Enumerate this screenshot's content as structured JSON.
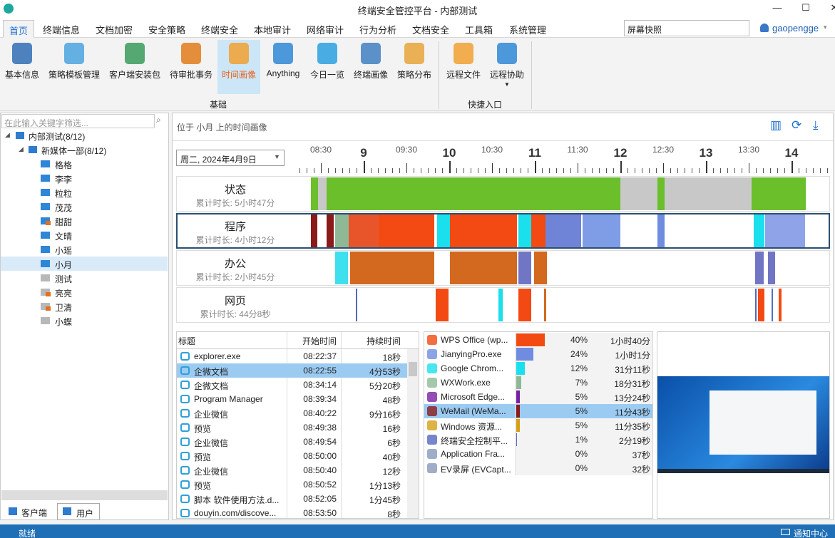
{
  "window": {
    "title": "终端安全管控平台 - 内部测试"
  },
  "menu": {
    "tabs": [
      "首页",
      "终端信息",
      "文档加密",
      "安全策略",
      "终端安全",
      "本地审计",
      "网络审计",
      "行为分析",
      "文档安全",
      "工具箱",
      "系统管理"
    ],
    "active": 0,
    "search": "屏幕快照",
    "user": "gaopengge"
  },
  "toolbar": {
    "groups": [
      {
        "label": "基础",
        "items": [
          {
            "label": "基本信息",
            "color": "#2f6db5"
          },
          {
            "label": "策略模板管理",
            "color": "#4aa3df"
          },
          {
            "label": "客户端安装包",
            "color": "#3a9a5b"
          },
          {
            "label": "待审批事务",
            "color": "#e07b1a"
          },
          {
            "label": "时间画像",
            "color": "#f0a030"
          },
          {
            "label": "Anything",
            "color": "#2f86d6"
          },
          {
            "label": "今日一览",
            "color": "#2aa0e0"
          },
          {
            "label": "终端画像",
            "color": "#3f7fc0"
          },
          {
            "label": "策略分布",
            "color": "#e8a33a"
          }
        ]
      },
      {
        "label": "快捷入口",
        "items": [
          {
            "label": "远程文件",
            "color": "#f0a030"
          },
          {
            "label": "远程协助",
            "color": "#2f86d6"
          }
        ]
      }
    ],
    "active": 4
  },
  "sidebar": {
    "filter_placeholder": "在此输入关键字筛选...",
    "root": "内部测试(8/12)",
    "dept": "新媒体一部(8/12)",
    "users": [
      {
        "name": "格格",
        "online": true
      },
      {
        "name": "李李",
        "online": true
      },
      {
        "name": "粒粒",
        "online": true
      },
      {
        "name": "茂茂",
        "online": true
      },
      {
        "name": "甜甜",
        "online": true,
        "locked": true
      },
      {
        "name": "文晴",
        "online": true
      },
      {
        "name": "小瑶",
        "online": true
      },
      {
        "name": "小月",
        "online": true
      },
      {
        "name": "测试",
        "online": false
      },
      {
        "name": "亮亮",
        "online": false,
        "locked": true
      },
      {
        "name": "卫清",
        "online": false,
        "locked": true
      },
      {
        "name": "小蝶",
        "online": false
      }
    ],
    "selected": 7,
    "tabs": [
      "客户端",
      "用户"
    ],
    "active_tab": 1
  },
  "panel": {
    "header": "位于 小月 上的时间画像",
    "date": "周二, 2024年4月9日"
  },
  "chart_data": {
    "type": "timeline",
    "xlim": [
      8.25,
      14.45
    ],
    "xticks": [
      {
        "value": 8.5,
        "label": "08:30"
      },
      9,
      {
        "value": 9.5,
        "label": "09:30"
      },
      10,
      {
        "value": 10.5,
        "label": "10:30"
      },
      11,
      {
        "value": 11.5,
        "label": "11:30"
      },
      12,
      {
        "value": 12.5,
        "label": "12:30"
      },
      13,
      {
        "value": 13.5,
        "label": "13:30"
      },
      14
    ],
    "rows": [
      {
        "name": "状态",
        "total": "累计时长: 5小时47分",
        "segments": [
          {
            "start": 8.383,
            "end": 8.467,
            "color": "#6abf2a"
          },
          {
            "start": 8.467,
            "end": 8.567,
            "color": "#c8c8c8"
          },
          {
            "start": 8.567,
            "end": 12.0,
            "color": "#6abf2a"
          },
          {
            "start": 12.0,
            "end": 12.433,
            "color": "#c8c8c8"
          },
          {
            "start": 12.433,
            "end": 12.517,
            "color": "#6abf2a"
          },
          {
            "start": 12.517,
            "end": 13.533,
            "color": "#c8c8c8"
          },
          {
            "start": 13.533,
            "end": 14.167,
            "color": "#6abf2a"
          }
        ]
      },
      {
        "name": "程序",
        "total": "累计时长: 4小时12分",
        "segments": [
          {
            "start": 8.383,
            "end": 8.458,
            "color": "#8b1a1a"
          },
          {
            "start": 8.567,
            "end": 8.65,
            "color": "#8b1a1a"
          },
          {
            "start": 8.667,
            "end": 8.825,
            "color": "#8fb996"
          },
          {
            "start": 8.825,
            "end": 9.175,
            "color": "#e8552a"
          },
          {
            "start": 9.175,
            "end": 9.825,
            "color": "#f24a12"
          },
          {
            "start": 9.858,
            "end": 10.008,
            "color": "#19e0ec"
          },
          {
            "start": 10.008,
            "end": 10.792,
            "color": "#f24a12"
          },
          {
            "start": 10.808,
            "end": 10.958,
            "color": "#19e0ec"
          },
          {
            "start": 10.958,
            "end": 11.125,
            "color": "#f24a12"
          },
          {
            "start": 11.125,
            "end": 11.542,
            "color": "#6f84d6"
          },
          {
            "start": 11.558,
            "end": 12.0,
            "color": "#7f9ce6"
          },
          {
            "start": 12.433,
            "end": 12.517,
            "color": "#6f8ce0"
          },
          {
            "start": 13.558,
            "end": 13.683,
            "color": "#19e0ec"
          },
          {
            "start": 13.692,
            "end": 14.158,
            "color": "#8fa3e8"
          }
        ]
      },
      {
        "name": "办公",
        "total": "累计时长: 2小时45分",
        "segments": [
          {
            "start": 8.667,
            "end": 8.817,
            "color": "#3de0ec"
          },
          {
            "start": 8.842,
            "end": 9.825,
            "color": "#d2691e"
          },
          {
            "start": 10.008,
            "end": 10.792,
            "color": "#d2691e"
          },
          {
            "start": 10.808,
            "end": 10.958,
            "color": "#7076c4"
          },
          {
            "start": 10.992,
            "end": 11.142,
            "color": "#d2691e"
          },
          {
            "start": 13.575,
            "end": 13.675,
            "color": "#7076c4"
          },
          {
            "start": 13.725,
            "end": 13.808,
            "color": "#7076c4"
          }
        ]
      },
      {
        "name": "网页",
        "total": "累计时长: 44分8秒",
        "segments": [
          {
            "start": 8.908,
            "end": 8.925,
            "color": "#5566c0"
          },
          {
            "start": 9.842,
            "end": 9.992,
            "color": "#f24a12"
          },
          {
            "start": 10.575,
            "end": 10.625,
            "color": "#19e0ec"
          },
          {
            "start": 10.808,
            "end": 10.958,
            "color": "#f24a12"
          },
          {
            "start": 11.108,
            "end": 11.133,
            "color": "#d2691e"
          },
          {
            "start": 13.575,
            "end": 13.592,
            "color": "#5566c0"
          },
          {
            "start": 13.608,
            "end": 13.683,
            "color": "#f24a12"
          },
          {
            "start": 13.767,
            "end": 13.783,
            "color": "#4f6fd0"
          },
          {
            "start": 13.85,
            "end": 13.883,
            "color": "#f24a12"
          }
        ]
      }
    ],
    "active_row": 1
  },
  "events": {
    "columns": [
      "标题",
      "开始时间",
      "持续时间"
    ],
    "selected": 1,
    "rows": [
      [
        "explorer.exe",
        "08:22:37",
        "18秒"
      ],
      [
        "企微文档",
        "08:22:55",
        "4分53秒"
      ],
      [
        "企微文档",
        "08:34:14",
        "5分20秒"
      ],
      [
        "Program Manager",
        "08:39:34",
        "48秒"
      ],
      [
        "企业微信",
        "08:40:22",
        "9分16秒"
      ],
      [
        "预览",
        "08:49:38",
        "16秒"
      ],
      [
        "企业微信",
        "08:49:54",
        "6秒"
      ],
      [
        "预览",
        "08:50:00",
        "40秒"
      ],
      [
        "企业微信",
        "08:50:40",
        "12秒"
      ],
      [
        "预览",
        "08:50:52",
        "1分13秒"
      ],
      [
        "脚本 软件使用方法.d...",
        "08:52:05",
        "1分45秒"
      ],
      [
        "douyin.com/discove...",
        "08:53:50",
        "8秒"
      ]
    ]
  },
  "apps": {
    "selected": 5,
    "names": [
      "WPS Office (wp...",
      "JianyingPro.exe",
      "Google Chrom...",
      "WXWork.exe",
      "Microsoft Edge...",
      "WeMail (WeMa...",
      "Windows 资源...",
      "终端安全控制平...",
      "Application Fra...",
      "EV录屏 (EVCapt..."
    ],
    "values": [
      40,
      24,
      12,
      7,
      5,
      5,
      5,
      1,
      0,
      0
    ],
    "value_labels": [
      "40%",
      "24%",
      "12%",
      "7%",
      "5%",
      "5%",
      "5%",
      "1%",
      "0%",
      "0%"
    ],
    "durations": [
      "1小时40分",
      "1小时1分",
      "31分11秒",
      "18分31秒",
      "13分24秒",
      "11分43秒",
      "11分35秒",
      "2分19秒",
      "37秒",
      "32秒"
    ],
    "colors": [
      "#f24a12",
      "#6f8ce0",
      "#19e0ec",
      "#8fb996",
      "#7a1fa2",
      "#8b1a1a",
      "#d4a017",
      "#5566c0",
      "#8899bb",
      "#8899bb"
    ]
  },
  "statusbar": {
    "left": "就绪",
    "right": "通知中心"
  }
}
